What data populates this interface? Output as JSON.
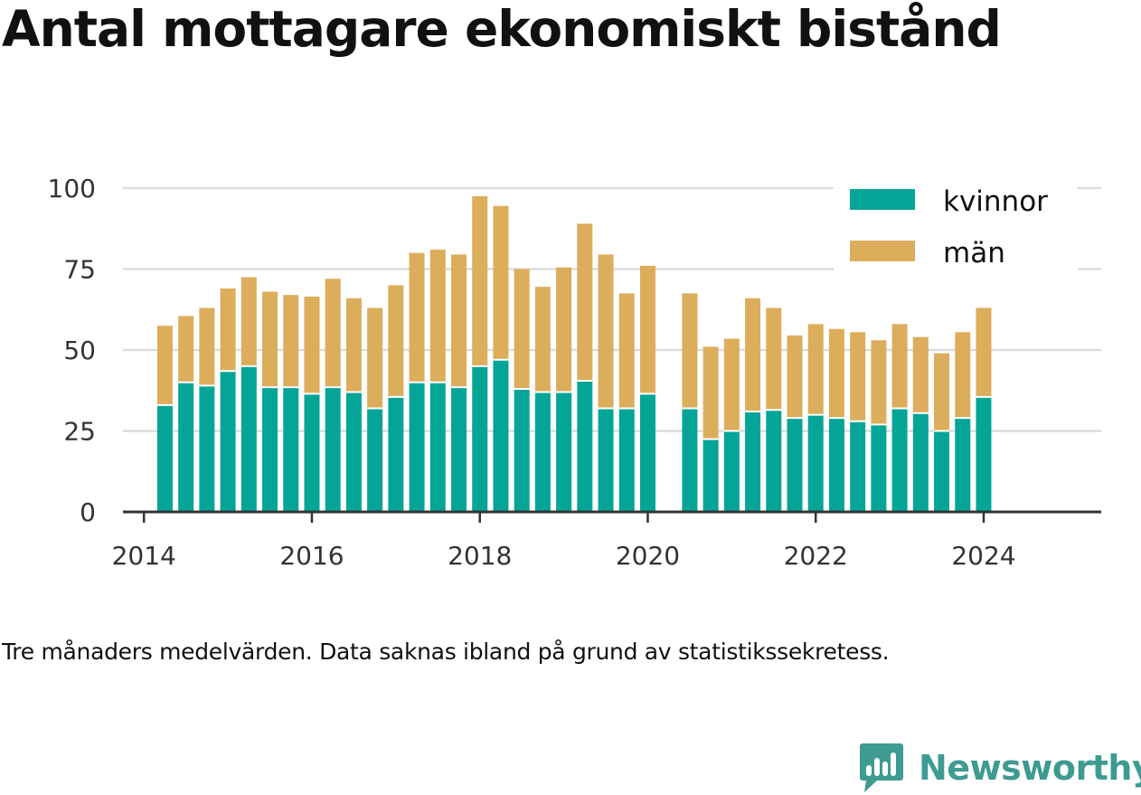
{
  "chart_data": {
    "type": "bar",
    "stacked": true,
    "title": "Antal mottagare ekonomiskt bistånd",
    "subtitle": "",
    "xlabel": "",
    "ylabel": "",
    "caption": "Tre månaders medelvärden. Data saknas ibland på grund av statistikssekretess.",
    "ylim": [
      0,
      100
    ],
    "yticks": [
      "0",
      "25",
      "50",
      "75",
      "100"
    ],
    "xlim": [
      2013.75,
      2025.4
    ],
    "xticks": [
      "2014",
      "2016",
      "2018",
      "2020",
      "2022",
      "2024"
    ],
    "grid": true,
    "legend_position": "top-right",
    "x": [
      2014.25,
      2014.5,
      2014.75,
      2015.0,
      2015.25,
      2015.5,
      2015.75,
      2016.0,
      2016.25,
      2016.5,
      2016.75,
      2017.0,
      2017.25,
      2017.5,
      2017.75,
      2018.0,
      2018.25,
      2018.5,
      2018.75,
      2019.0,
      2019.25,
      2019.5,
      2019.75,
      2020.0,
      2020.25,
      2020.5,
      2020.75,
      2021.0,
      2021.25,
      2021.5,
      2021.75,
      2022.0,
      2022.25,
      2022.5,
      2022.75,
      2023.0,
      2023.25,
      2023.5,
      2023.75,
      2024.0
    ],
    "series": [
      {
        "name": "kvinnor",
        "color": "#04a597",
        "values": [
          33,
          40,
          39,
          43.5,
          45,
          38.5,
          38.5,
          36.5,
          38.5,
          37,
          32,
          35.5,
          40,
          40,
          38.5,
          45,
          47,
          38,
          37,
          37,
          40.5,
          32,
          32,
          36.5,
          null,
          32,
          22.5,
          25,
          31,
          31.5,
          29,
          30,
          29,
          28,
          27,
          32,
          30.5,
          25,
          29,
          35.5
        ]
      },
      {
        "name": "män",
        "color": "#dcad5b",
        "values": [
          24.5,
          20.5,
          24,
          25.5,
          27.5,
          29.5,
          28.5,
          30,
          33.5,
          29,
          31,
          34.5,
          40,
          41,
          41,
          52.5,
          47.5,
          37,
          32.5,
          38.5,
          48.5,
          47.5,
          35.5,
          39.5,
          null,
          35.5,
          28.5,
          28.5,
          35,
          31.5,
          25.5,
          28,
          27.5,
          27.5,
          26,
          26,
          23.5,
          24,
          26.5,
          27.5
        ]
      }
    ]
  },
  "brand": {
    "name": "Newsworthy",
    "logo_icon": "newsworthy-logo-icon",
    "color": "#3d9b91"
  }
}
